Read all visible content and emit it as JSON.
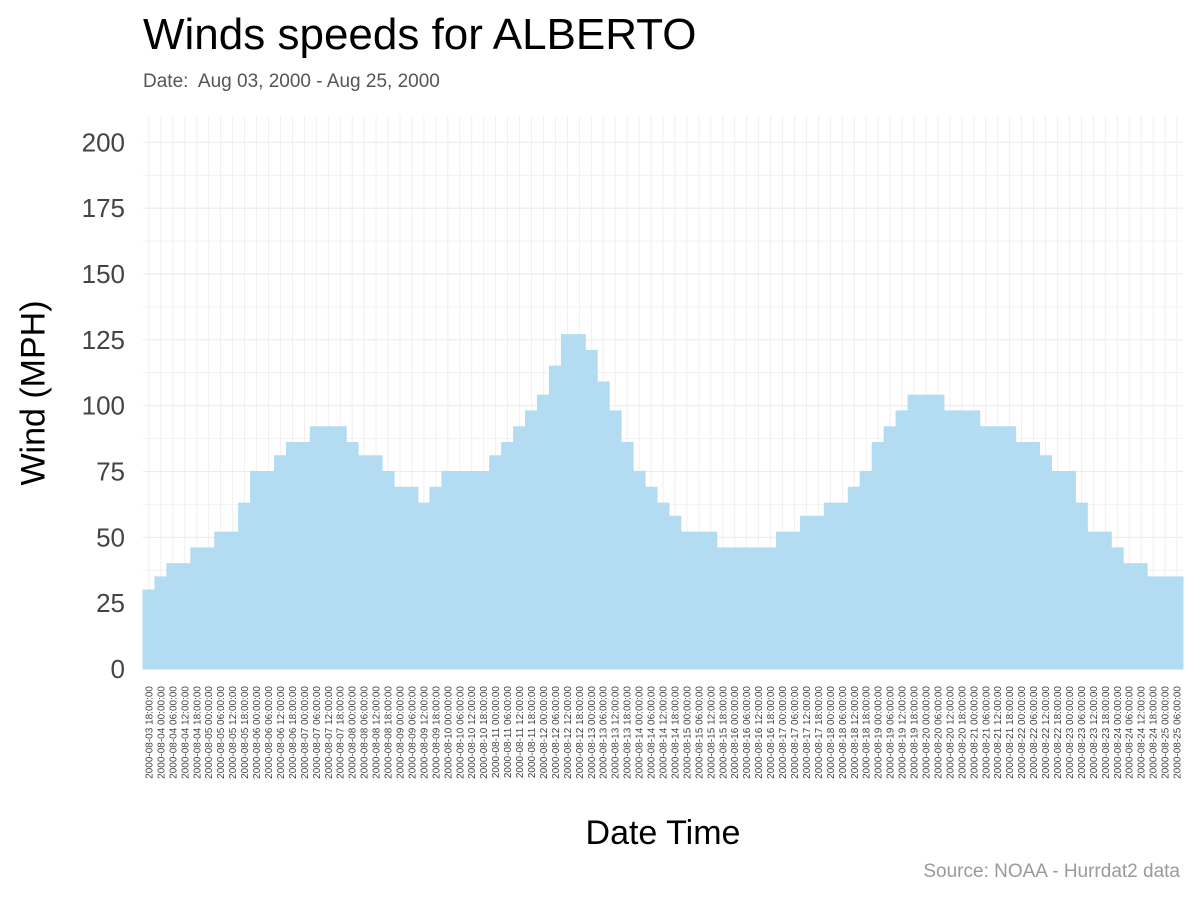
{
  "header": {
    "title": "Winds speeds for ALBERTO",
    "subtitle": "Date:  Aug 03, 2000 - Aug 25, 2000"
  },
  "caption": "Source: NOAA - Hurrdat2 data",
  "colors": {
    "area": "#b3dcf2",
    "grid": "#ececec",
    "text": "#444444"
  },
  "chart_data": {
    "type": "area",
    "title": "Winds speeds for ALBERTO",
    "subtitle": "Date:  Aug 03, 2000 - Aug 25, 2000",
    "xlabel": "Date Time",
    "ylabel": "Wind (MPH)",
    "ylim": [
      0,
      210
    ],
    "yticks": [
      0,
      25,
      50,
      75,
      100,
      125,
      150,
      175,
      200
    ],
    "grid": true,
    "x": [
      "2000-08-03 18:00:00",
      "2000-08-04 00:00:00",
      "2000-08-04 06:00:00",
      "2000-08-04 12:00:00",
      "2000-08-04 18:00:00",
      "2000-08-05 00:00:00",
      "2000-08-05 06:00:00",
      "2000-08-05 12:00:00",
      "2000-08-05 18:00:00",
      "2000-08-06 00:00:00",
      "2000-08-06 06:00:00",
      "2000-08-06 12:00:00",
      "2000-08-06 18:00:00",
      "2000-08-07 00:00:00",
      "2000-08-07 06:00:00",
      "2000-08-07 12:00:00",
      "2000-08-07 18:00:00",
      "2000-08-08 00:00:00",
      "2000-08-08 06:00:00",
      "2000-08-08 12:00:00",
      "2000-08-08 18:00:00",
      "2000-08-09 00:00:00",
      "2000-08-09 06:00:00",
      "2000-08-09 12:00:00",
      "2000-08-09 18:00:00",
      "2000-08-10 00:00:00",
      "2000-08-10 06:00:00",
      "2000-08-10 12:00:00",
      "2000-08-10 18:00:00",
      "2000-08-11 00:00:00",
      "2000-08-11 06:00:00",
      "2000-08-11 12:00:00",
      "2000-08-11 18:00:00",
      "2000-08-12 00:00:00",
      "2000-08-12 06:00:00",
      "2000-08-12 12:00:00",
      "2000-08-12 18:00:00",
      "2000-08-13 00:00:00",
      "2000-08-13 06:00:00",
      "2000-08-13 12:00:00",
      "2000-08-13 18:00:00",
      "2000-08-14 00:00:00",
      "2000-08-14 06:00:00",
      "2000-08-14 12:00:00",
      "2000-08-14 18:00:00",
      "2000-08-15 00:00:00",
      "2000-08-15 06:00:00",
      "2000-08-15 12:00:00",
      "2000-08-15 18:00:00",
      "2000-08-16 00:00:00",
      "2000-08-16 06:00:00",
      "2000-08-16 12:00:00",
      "2000-08-16 18:00:00",
      "2000-08-17 00:00:00",
      "2000-08-17 06:00:00",
      "2000-08-17 12:00:00",
      "2000-08-17 18:00:00",
      "2000-08-18 00:00:00",
      "2000-08-18 06:00:00",
      "2000-08-18 12:00:00",
      "2000-08-18 18:00:00",
      "2000-08-19 00:00:00",
      "2000-08-19 06:00:00",
      "2000-08-19 12:00:00",
      "2000-08-19 18:00:00",
      "2000-08-20 00:00:00",
      "2000-08-20 06:00:00",
      "2000-08-20 12:00:00",
      "2000-08-20 18:00:00",
      "2000-08-21 00:00:00",
      "2000-08-21 06:00:00",
      "2000-08-21 12:00:00",
      "2000-08-21 18:00:00",
      "2000-08-22 00:00:00",
      "2000-08-22 06:00:00",
      "2000-08-22 12:00:00",
      "2000-08-22 18:00:00",
      "2000-08-23 00:00:00",
      "2000-08-23 06:00:00",
      "2000-08-23 12:00:00",
      "2000-08-23 18:00:00",
      "2000-08-24 00:00:00",
      "2000-08-24 06:00:00",
      "2000-08-24 12:00:00",
      "2000-08-24 18:00:00",
      "2000-08-25 00:00:00",
      "2000-08-25 06:00:00"
    ],
    "values": [
      30,
      35,
      40,
      40,
      46,
      46,
      52,
      52,
      63,
      75,
      75,
      81,
      86,
      86,
      92,
      92,
      92,
      86,
      81,
      81,
      75,
      69,
      69,
      63,
      69,
      75,
      75,
      75,
      75,
      81,
      86,
      92,
      98,
      104,
      115,
      127,
      127,
      121,
      109,
      98,
      86,
      75,
      69,
      63,
      58,
      52,
      52,
      52,
      46,
      46,
      46,
      46,
      46,
      52,
      52,
      58,
      58,
      63,
      63,
      69,
      75,
      86,
      92,
      98,
      104,
      104,
      104,
      98,
      98,
      98,
      92,
      92,
      92,
      86,
      86,
      81,
      75,
      75,
      63,
      52,
      52,
      46,
      40,
      40,
      35,
      35,
      35
    ]
  }
}
